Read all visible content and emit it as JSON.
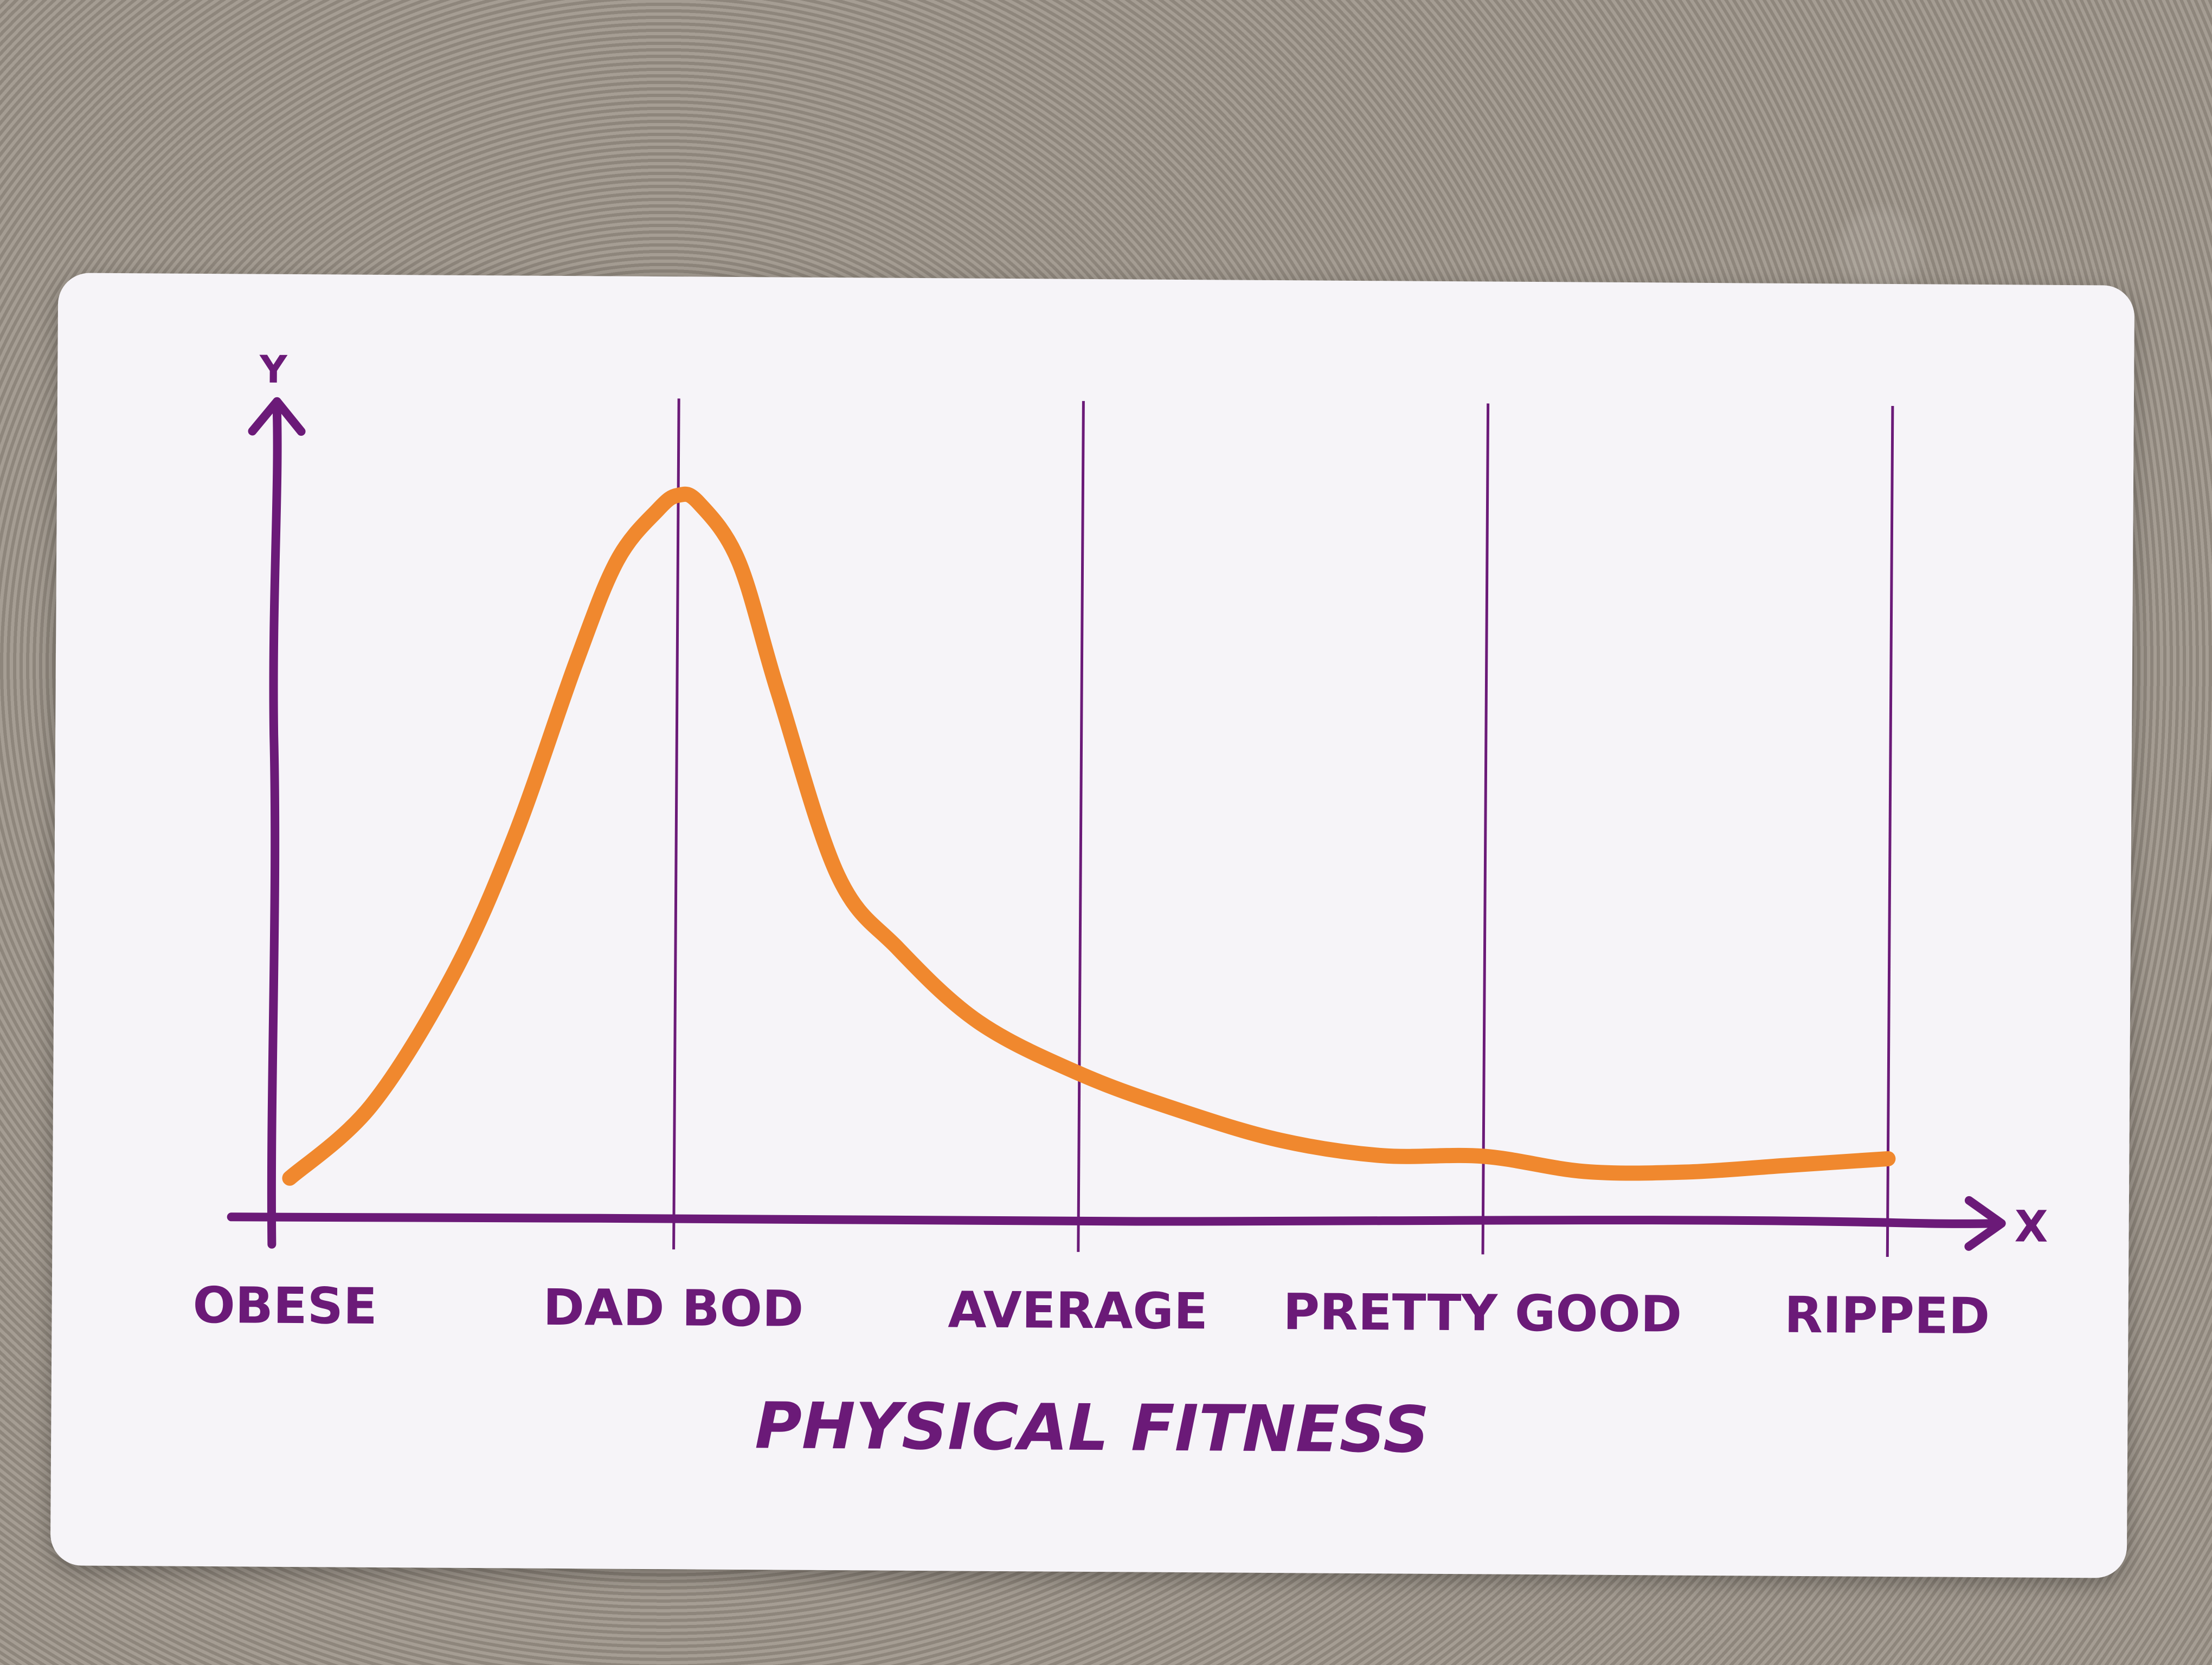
{
  "chart_data": {
    "type": "line",
    "title": "",
    "xlabel": "PHYSICAL FITNESS",
    "ylabel": "Y",
    "x_axis_end_label": "X",
    "categories": [
      "OBESE",
      "DAD BOD",
      "AVERAGE",
      "PRETTY GOOD",
      "RIPPED"
    ],
    "xlim": [
      0,
      4
    ],
    "ylim": [
      0,
      1
    ],
    "grid": "vertical lines at DAD BOD, AVERAGE, PRETTY GOOD, RIPPED",
    "series": [
      {
        "color": "#f0882e",
        "x": [
          0.05,
          0.25,
          0.45,
          0.6,
          0.75,
          0.85,
          0.95,
          1.0,
          1.05,
          1.15,
          1.25,
          1.4,
          1.55,
          1.75,
          2.0,
          2.25,
          2.5,
          2.75,
          3.0,
          3.25,
          3.5,
          3.75,
          4.0
        ],
        "values": [
          0.05,
          0.15,
          0.33,
          0.52,
          0.76,
          0.9,
          0.97,
          0.99,
          0.98,
          0.9,
          0.72,
          0.47,
          0.37,
          0.27,
          0.2,
          0.15,
          0.11,
          0.09,
          0.09,
          0.07,
          0.07,
          0.08,
          0.09
        ]
      }
    ]
  },
  "colors": {
    "axis": "#6b1a78",
    "gridline": "#6b1a78",
    "curve": "#f0882e",
    "card": "#f6f4f8"
  }
}
